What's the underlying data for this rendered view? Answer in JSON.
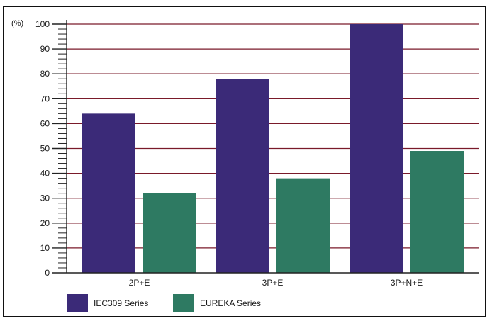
{
  "chart_data": {
    "type": "bar",
    "unit_label": "(%)",
    "categories": [
      "2P+E",
      "3P+E",
      "3P+N+E"
    ],
    "series": [
      {
        "name": "IEC309 Series",
        "values": [
          64,
          78,
          100
        ],
        "color": "#3b2a78"
      },
      {
        "name": "EUREKA Series",
        "values": [
          32,
          38,
          49
        ],
        "color": "#2e7a62"
      }
    ],
    "ylim": [
      0,
      100
    ],
    "yticks": [
      0,
      10,
      20,
      30,
      40,
      50,
      60,
      70,
      80,
      90,
      100
    ],
    "grid": true,
    "grid_color": "#7a1a2a",
    "legend_position": "bottom-left"
  }
}
